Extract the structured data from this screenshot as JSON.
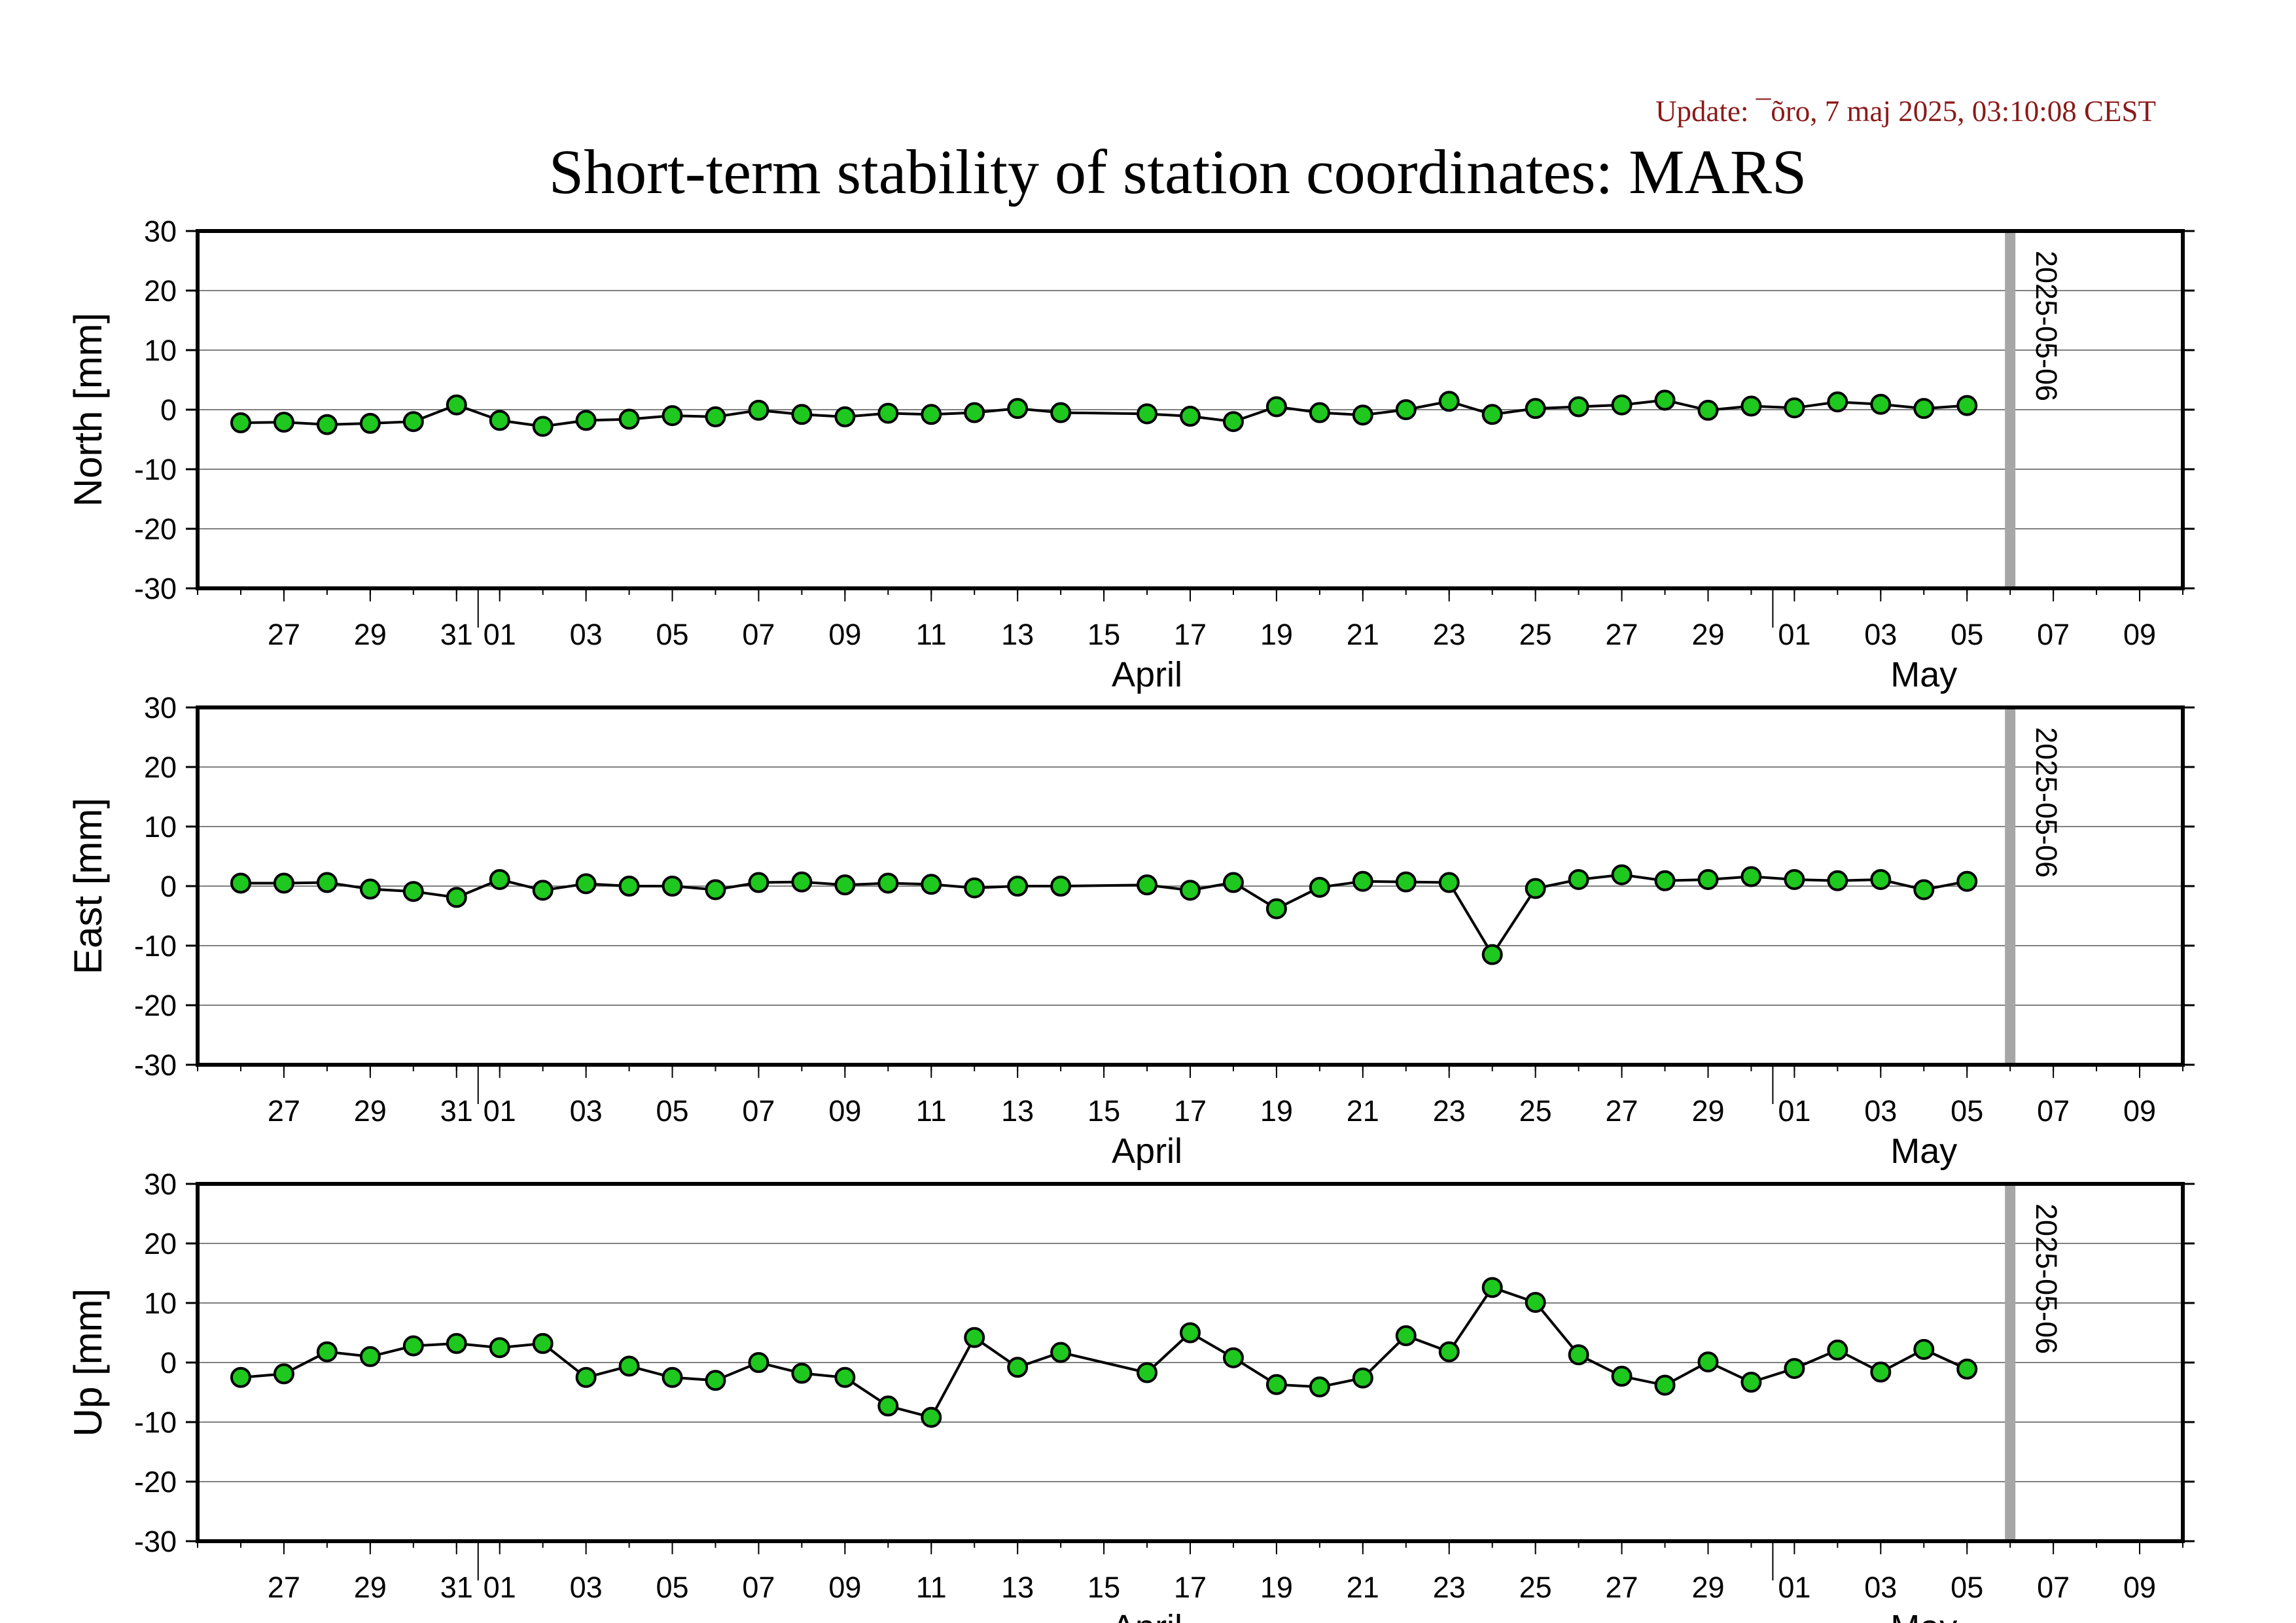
{
  "update_label": "Update: ¯õro, 7 maj 2025, 03:10:08 CEST",
  "title": "Short-term stability of station coordinates: MARS",
  "chart_data": {
    "type": "scatter",
    "title": "Short-term stability of station coordinates: MARS",
    "x_range": [
      "2025-03-25",
      "2025-05-10"
    ],
    "x_tick_labels": [
      "27",
      "29",
      "31",
      "01",
      "03",
      "05",
      "07",
      "09",
      "11",
      "13",
      "15",
      "17",
      "19",
      "21",
      "23",
      "25",
      "27",
      "29",
      "01",
      "03",
      "05",
      "07",
      "09"
    ],
    "month_labels": [
      "April",
      "May"
    ],
    "marker_date": "2025-05-06",
    "marker_label": "2025-05-06",
    "dates": [
      "2025-03-26",
      "2025-03-27",
      "2025-03-28",
      "2025-03-29",
      "2025-03-30",
      "2025-03-31",
      "2025-04-01",
      "2025-04-02",
      "2025-04-03",
      "2025-04-04",
      "2025-04-05",
      "2025-04-06",
      "2025-04-07",
      "2025-04-08",
      "2025-04-09",
      "2025-04-10",
      "2025-04-11",
      "2025-04-12",
      "2025-04-13",
      "2025-04-14",
      "2025-04-16",
      "2025-04-17",
      "2025-04-18",
      "2025-04-19",
      "2025-04-20",
      "2025-04-21",
      "2025-04-22",
      "2025-04-23",
      "2025-04-24",
      "2025-04-25",
      "2025-04-26",
      "2025-04-27",
      "2025-04-28",
      "2025-04-29",
      "2025-04-30",
      "2025-05-01",
      "2025-05-02",
      "2025-05-03",
      "2025-05-04",
      "2025-05-05"
    ],
    "panels": [
      {
        "ylabel": "North [mm]",
        "ylim": [
          -30,
          30
        ],
        "yticks": [
          30,
          20,
          10,
          0,
          -10,
          -20,
          -30
        ],
        "values": [
          -2.2,
          -2.1,
          -2.5,
          -2.3,
          -2.0,
          0.8,
          -1.8,
          -2.8,
          -1.8,
          -1.6,
          -1.0,
          -1.2,
          -0.1,
          -0.8,
          -1.2,
          -0.6,
          -0.8,
          -0.5,
          0.2,
          -0.5,
          -0.7,
          -1.1,
          -2.0,
          0.5,
          -0.5,
          -0.9,
          0.0,
          1.4,
          -0.8,
          0.2,
          0.5,
          0.8,
          1.6,
          -0.1,
          0.6,
          0.3,
          1.3,
          0.9,
          0.2,
          0.7
        ]
      },
      {
        "ylabel": "East [mm]",
        "ylim": [
          -30,
          30
        ],
        "yticks": [
          30,
          20,
          10,
          0,
          -10,
          -20,
          -30
        ],
        "values": [
          0.5,
          0.5,
          0.6,
          -0.5,
          -0.9,
          -1.9,
          1.1,
          -0.7,
          0.4,
          0.0,
          0.0,
          -0.6,
          0.6,
          0.7,
          0.2,
          0.5,
          0.3,
          -0.3,
          0.0,
          0.0,
          0.2,
          -0.7,
          0.6,
          -3.8,
          -0.2,
          0.8,
          0.7,
          0.6,
          -11.5,
          -0.4,
          1.1,
          1.9,
          0.9,
          1.1,
          1.6,
          1.1,
          0.9,
          1.1,
          -0.6,
          0.8
        ]
      },
      {
        "ylabel": "Up [mm]",
        "ylim": [
          -30,
          30
        ],
        "yticks": [
          30,
          20,
          10,
          0,
          -10,
          -20,
          -30
        ],
        "values": [
          -2.5,
          -1.9,
          1.8,
          1.0,
          2.8,
          3.2,
          2.5,
          3.2,
          -2.5,
          -0.6,
          -2.5,
          -3.0,
          0.0,
          -1.8,
          -2.5,
          -7.3,
          -9.2,
          4.2,
          -0.8,
          1.7,
          -1.7,
          5.0,
          0.8,
          -3.7,
          -4.1,
          -2.6,
          4.5,
          1.8,
          12.6,
          10.1,
          1.3,
          -2.3,
          -3.8,
          0.1,
          -3.3,
          -1.0,
          2.1,
          -1.6,
          2.2,
          -1.1
        ]
      }
    ]
  }
}
